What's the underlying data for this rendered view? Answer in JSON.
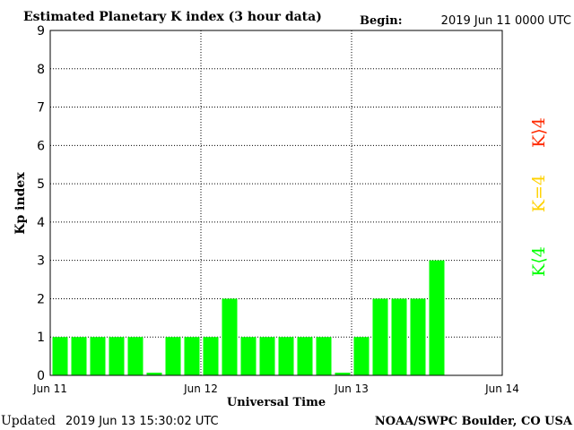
{
  "header": {
    "title": "Estimated Planetary K index (3 hour data)",
    "begin_label": "Begin:",
    "begin_value": "2019 Jun 11 0000 UTC"
  },
  "footer": {
    "updated_label": "Updated",
    "updated_value": "2019 Jun 13 15:30:02 UTC",
    "credit": "NOAA/SWPC Boulder, CO USA"
  },
  "legend": {
    "above": "K⟩4",
    "equal": "K=4",
    "below": "K⟨4"
  },
  "colors": {
    "bar": "#00ff00",
    "legend_above": "#ff2a00",
    "legend_equal": "#ffd200",
    "legend_below": "#00ff00",
    "grid": "#000000",
    "text": "#000000"
  },
  "chart_data": {
    "type": "bar",
    "title": "Estimated Planetary K index (3 hour data)",
    "xlabel": "Universal Time",
    "ylabel": "Kp index",
    "ylim": [
      0,
      9
    ],
    "yticks": [
      "0",
      "1",
      "2",
      "3",
      "4",
      "5",
      "6",
      "7",
      "8",
      "9"
    ],
    "xticks": [
      "Jun 11",
      "Jun 12",
      "Jun 13",
      "Jun 14"
    ],
    "bar_interval_hours": 3,
    "grid": true,
    "values": [
      1,
      1,
      1,
      1,
      1,
      0,
      1,
      1,
      1,
      2,
      1,
      1,
      1,
      1,
      1,
      0,
      1,
      2,
      2,
      2,
      3
    ]
  }
}
